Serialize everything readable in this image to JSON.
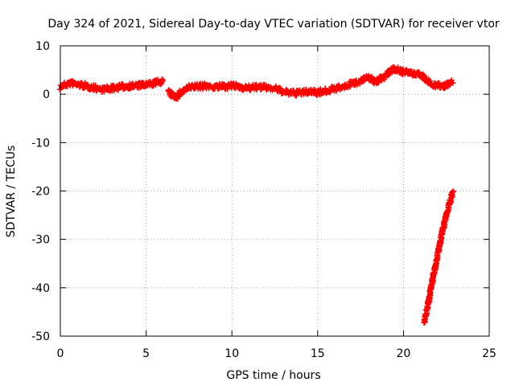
{
  "chart_data": {
    "type": "scatter",
    "title": "Day 324 of 2021, Sidereal Day-to-day VTEC variation (SDTVAR) for receiver vtor",
    "xlabel": "GPS time / hours",
    "ylabel": "SDTVAR / TECUs",
    "xlim": [
      0,
      25
    ],
    "ylim": [
      -50,
      10
    ],
    "xticks": [
      0,
      5,
      10,
      15,
      20,
      25
    ],
    "yticks": [
      10,
      0,
      -10,
      -20,
      -30,
      -40,
      -50
    ],
    "xtick_labels": [
      "0",
      "5",
      "10",
      "15",
      "20",
      "25"
    ],
    "ytick_labels": [
      "10",
      "0",
      "-10",
      "-20",
      "-30",
      "-40",
      "-50"
    ],
    "grid": true,
    "series": [
      {
        "name": "SDTVAR",
        "color": "#ff0000",
        "marker": "plus",
        "segments": [
          {
            "x": [
              0,
              0.3,
              0.6,
              1.0,
              1.5,
              2.0,
              2.5,
              3.0,
              3.5,
              4.0,
              4.5,
              5.0,
              5.5,
              6.0
            ],
            "y": [
              1.5,
              2.0,
              2.3,
              2.0,
              1.7,
              1.3,
              1.0,
              1.2,
              1.5,
              1.7,
              1.8,
              1.9,
              2.3,
              2.8
            ]
          },
          {
            "x": [
              6.3,
              6.5,
              6.8,
              7.0,
              7.3,
              7.6,
              8.0,
              8.5,
              9.0,
              9.5,
              10.0,
              10.5,
              11.0,
              11.5,
              12.0,
              12.5,
              13.0
            ],
            "y": [
              0.5,
              -0.2,
              -0.5,
              0.3,
              1.0,
              1.5,
              1.6,
              1.7,
              1.5,
              1.6,
              1.7,
              1.5,
              1.3,
              1.5,
              1.4,
              1.2,
              0.5
            ]
          },
          {
            "x": [
              13.0,
              13.5,
              14.0,
              14.5,
              15.0,
              15.5,
              16.0,
              16.5,
              17.0,
              17.5,
              18.0,
              18.3,
              18.6,
              19.0,
              19.4,
              19.7,
              20.0,
              20.5,
              21.0,
              21.3,
              21.6,
              22.0,
              22.3,
              22.6,
              22.9
            ],
            "y": [
              0.5,
              0.2,
              0.3,
              0.6,
              0.4,
              0.7,
              1.2,
              1.5,
              2.2,
              2.8,
              3.5,
              2.6,
              3.0,
              4.0,
              5.3,
              5.0,
              4.6,
              4.3,
              4.1,
              3.0,
              2.2,
              1.8,
              1.6,
              2.2,
              2.7
            ]
          },
          {
            "x": [
              21.2,
              21.4,
              21.6,
              21.8,
              22.0,
              22.2,
              22.4,
              22.6,
              22.8,
              22.9
            ],
            "y": [
              -47,
              -44,
              -40,
              -36.5,
              -33,
              -29.5,
              -26.5,
              -23.5,
              -21.2,
              -20.2
            ]
          }
        ]
      }
    ]
  }
}
